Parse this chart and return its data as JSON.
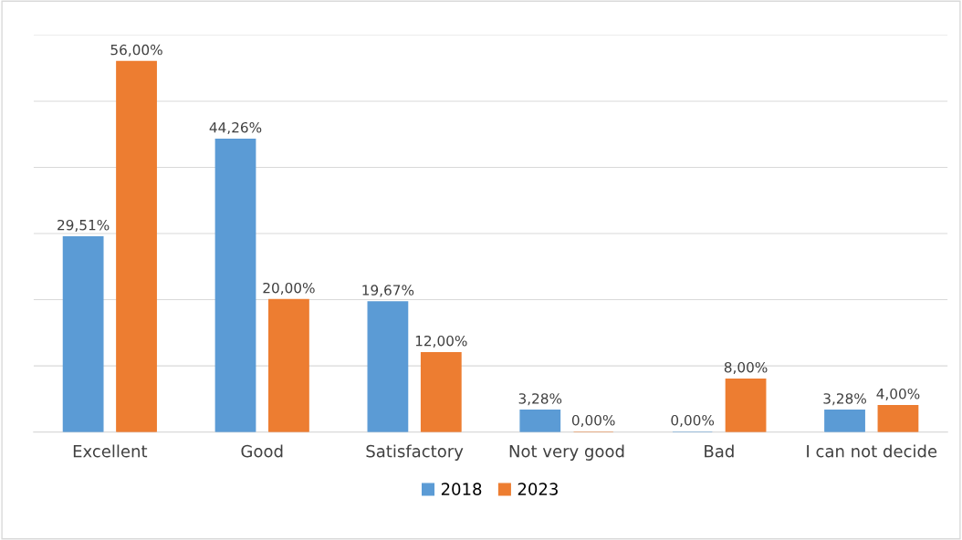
{
  "chart_data": {
    "type": "bar",
    "categories": [
      "Excellent",
      "Good",
      "Satisfactory",
      "Not very good",
      "Bad",
      "I can not decide"
    ],
    "series": [
      {
        "name": "2018",
        "color": "#5b9bd5",
        "values": [
          29.51,
          44.26,
          19.67,
          3.28,
          0,
          3.28
        ],
        "value_labels": [
          "29,51%",
          "44,26%",
          "19,67%",
          "3,28%",
          "0,00%",
          "3,28%"
        ]
      },
      {
        "name": "2023",
        "color": "#ed7d31",
        "values": [
          56,
          20,
          12,
          0,
          8,
          4
        ],
        "value_labels": [
          "56,00%",
          "20,00%",
          "12,00%",
          "0,00%",
          "8,00%",
          "4,00%"
        ]
      }
    ],
    "ylim": [
      0,
      60
    ],
    "yticks": [
      {
        "value": 0,
        "label": null
      },
      {
        "value": 10,
        "label": null
      },
      {
        "value": 20,
        "label": null
      },
      {
        "value": 30,
        "label": null
      },
      {
        "value": 40,
        "label": null
      },
      {
        "value": 50,
        "label": null
      },
      {
        "value": 60,
        "label": null
      }
    ],
    "tick_labels": "x",
    "grid": "y",
    "legend": "bottom"
  }
}
